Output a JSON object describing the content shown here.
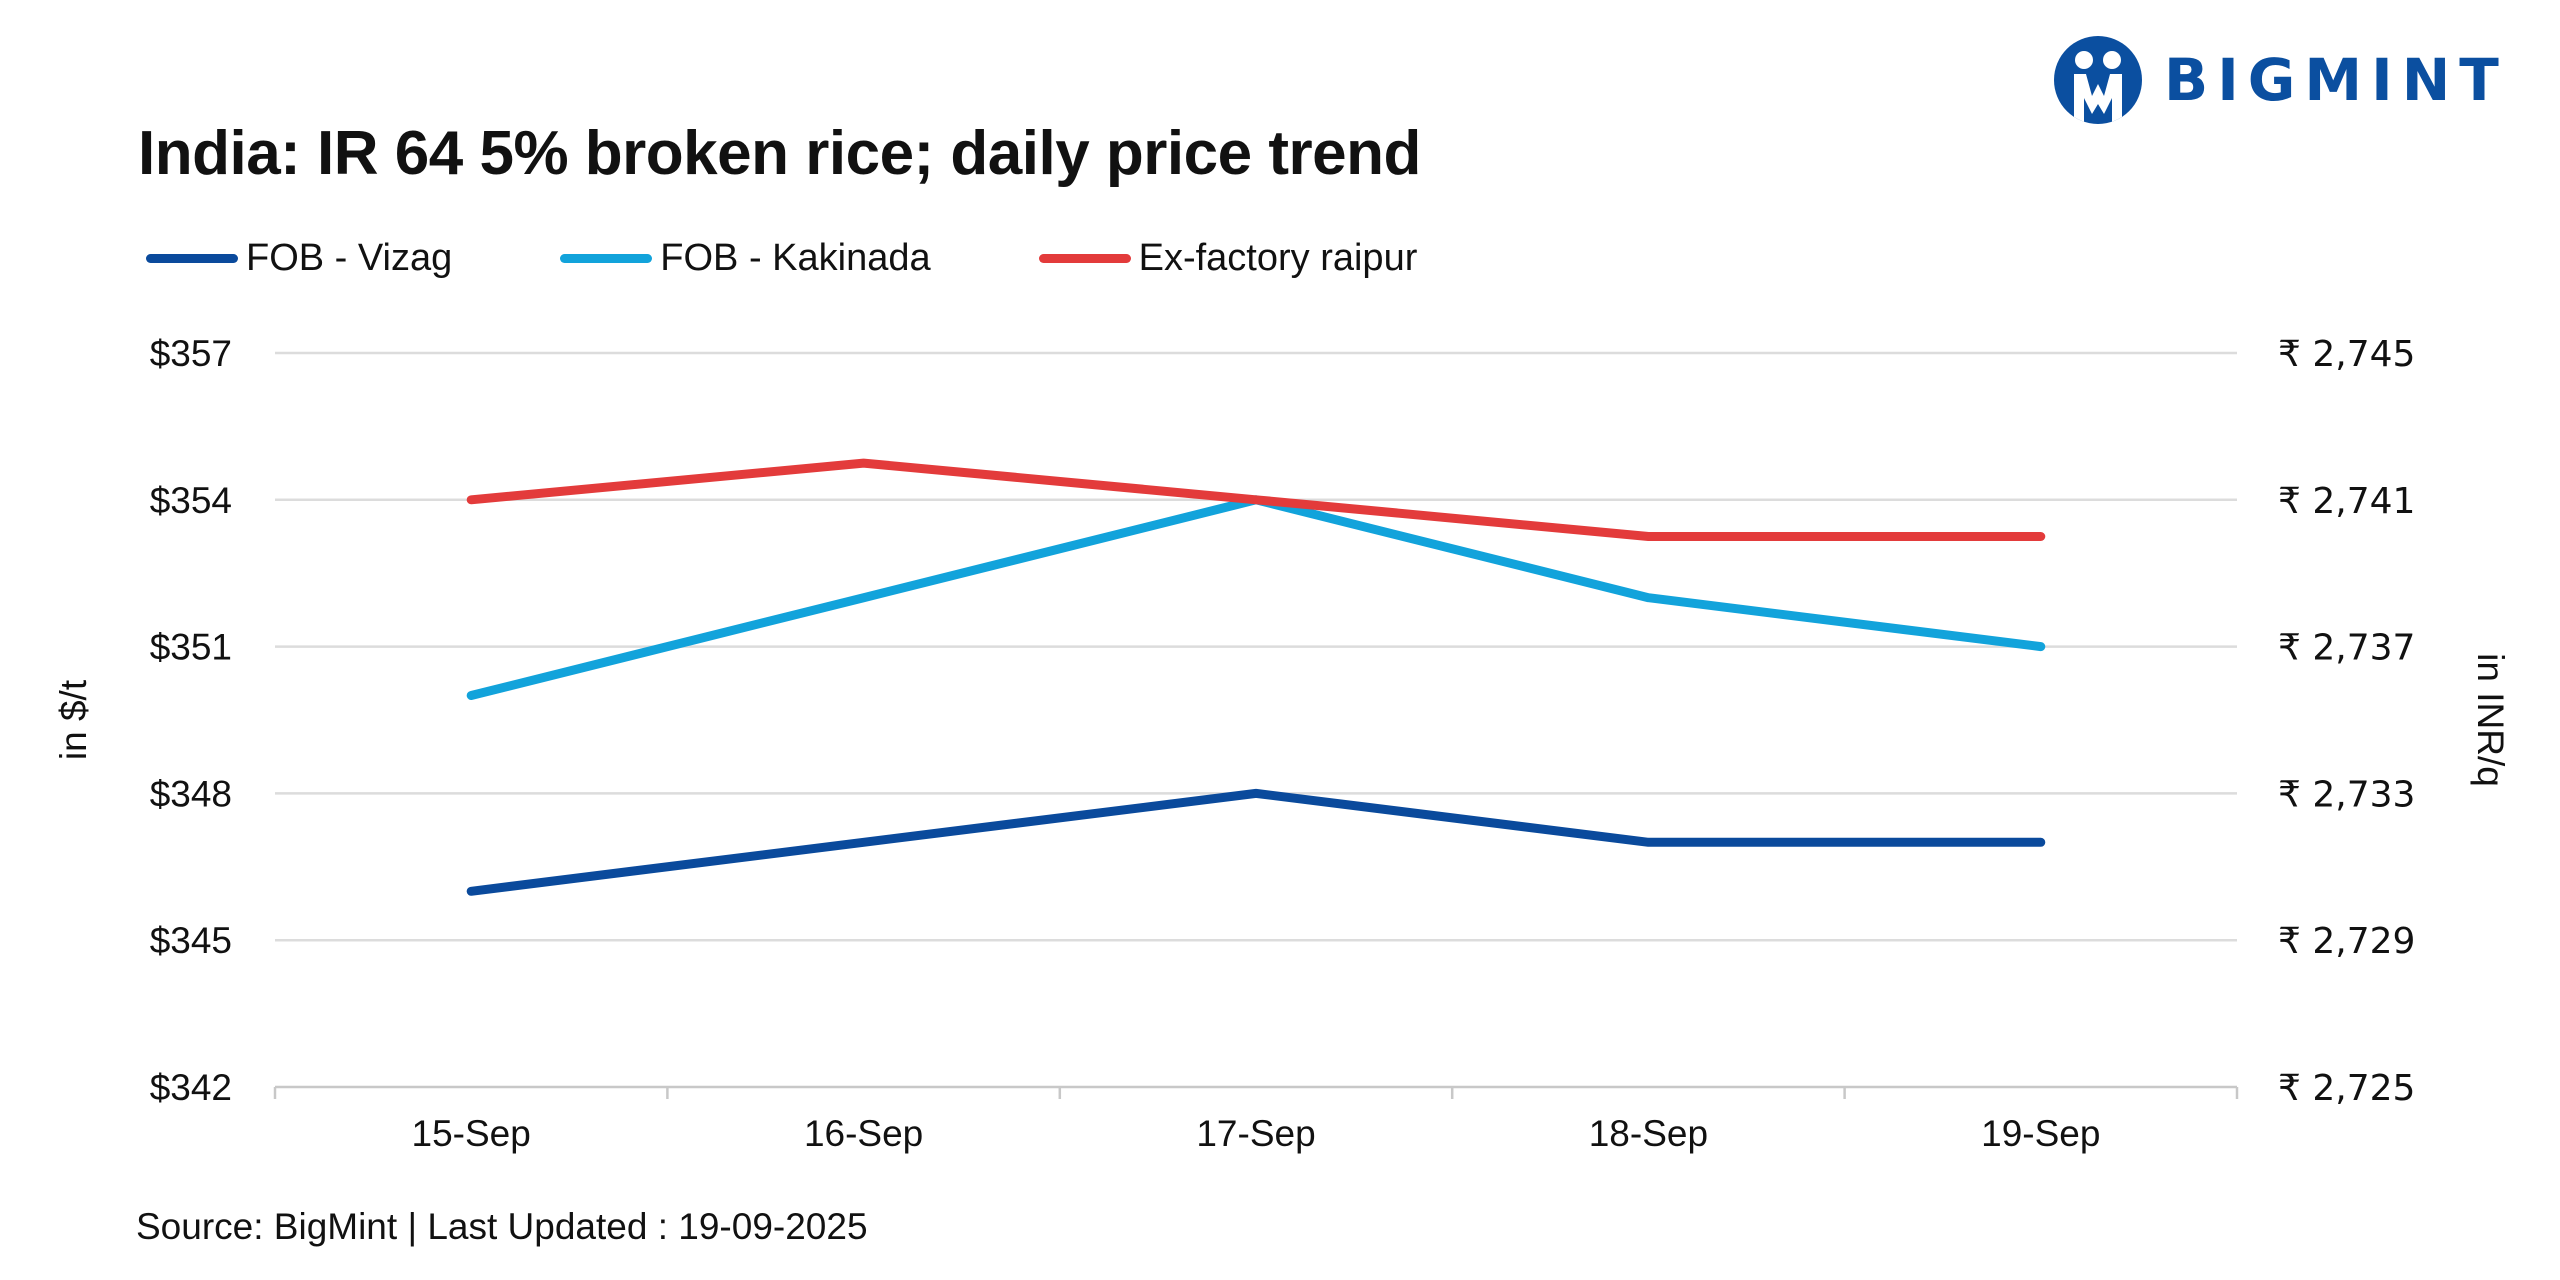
{
  "brand": {
    "logo_text": "BIGMINT",
    "logo_icon": "bigmint-people-logo-icon",
    "color": "#0b4fa0"
  },
  "chart_data": {
    "type": "line",
    "title": "India: IR 64 5% broken rice; daily price trend",
    "categories": [
      "15-Sep",
      "16-Sep",
      "17-Sep",
      "18-Sep",
      "19-Sep"
    ],
    "series": [
      {
        "name": "FOB - Vizag",
        "axis": "left",
        "color": "#0a4a9c",
        "values": [
          346,
          347,
          348,
          347,
          347
        ]
      },
      {
        "name": "FOB - Kakinada",
        "axis": "left",
        "color": "#12a3db",
        "values": [
          350,
          352,
          354,
          352,
          351
        ]
      },
      {
        "name": "Ex-factory raipur",
        "axis": "left",
        "color": "#e33b3b",
        "values": [
          354,
          354.75,
          354,
          353.25,
          353.25
        ]
      }
    ],
    "y_left": {
      "label": "in $/t",
      "range": [
        342,
        357
      ],
      "ticks": [
        357,
        354,
        351,
        348,
        345,
        342
      ],
      "tick_labels": [
        "$357",
        "$354",
        "$351",
        "$348",
        "$345",
        "$342"
      ]
    },
    "y_right": {
      "label": "in INR/q",
      "range": [
        2725,
        2745
      ],
      "tick_labels": [
        "₹ 2,745",
        "₹ 2,741",
        "₹ 2,737",
        "₹ 2,733",
        "₹ 2,729",
        "₹ 2,725"
      ]
    },
    "grid": true,
    "legend_position": "top-left",
    "source": "Source: BigMint | Last Updated : 19-09-2025"
  }
}
